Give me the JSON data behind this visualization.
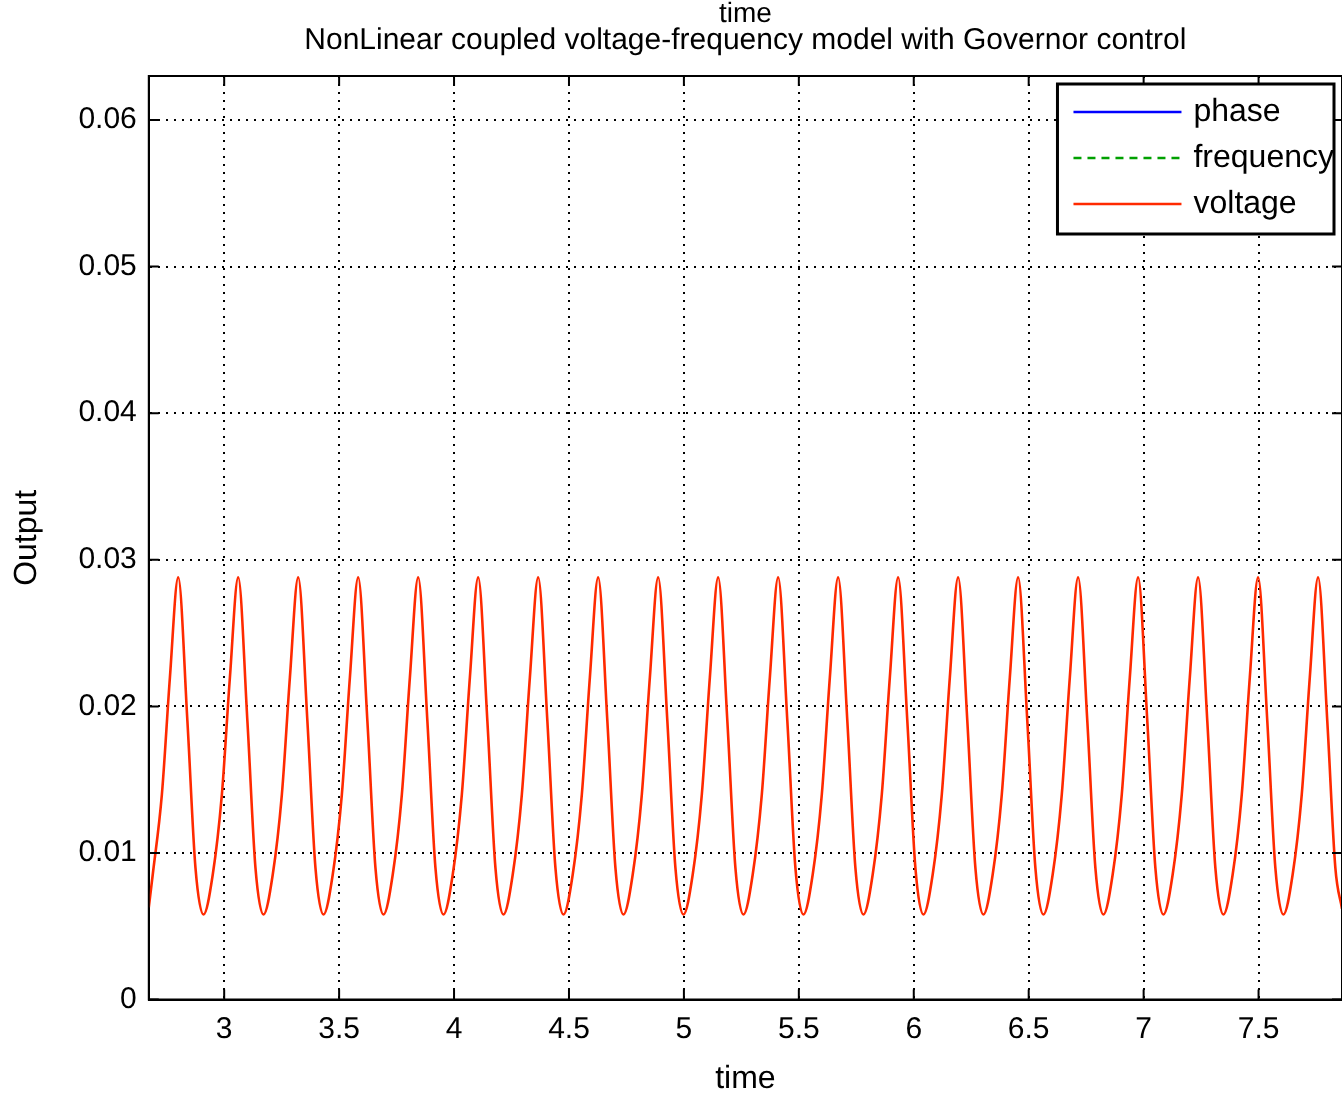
{
  "chart_data": {
    "type": "line",
    "title": "NonLinear coupled voltage-frequency model with Governor control",
    "xlabel": "time",
    "ylabel": "Output",
    "annotations": [
      "time"
    ],
    "x": [
      2.672,
      2.689,
      2.729,
      2.764,
      2.8,
      2.84,
      2.875,
      2.91,
      2.95,
      2.99,
      3.025,
      3.061,
      3.101,
      3.136,
      3.171,
      3.211,
      3.251,
      3.286,
      3.322,
      3.362,
      3.397,
      3.432,
      3.472,
      3.512,
      3.547,
      3.583,
      3.623,
      3.658,
      3.693,
      3.733,
      3.773,
      3.808,
      3.844,
      3.884,
      3.919,
      3.954,
      3.994,
      4.034,
      4.069,
      4.105,
      4.145,
      4.18,
      4.215,
      4.255,
      4.295,
      4.33,
      4.366,
      4.406,
      4.441,
      4.476,
      4.516,
      4.556,
      4.591,
      4.627,
      4.667,
      4.702,
      4.737,
      4.777,
      4.817,
      4.852,
      4.888,
      4.928,
      4.963,
      4.998,
      5.038,
      5.078,
      5.113,
      5.149,
      5.189,
      5.224,
      5.259,
      5.299,
      5.339,
      5.374,
      5.41,
      5.45,
      5.485,
      5.52,
      5.56,
      5.6,
      5.635,
      5.671,
      5.711,
      5.746,
      5.781,
      5.821,
      5.861,
      5.896,
      5.932,
      5.972,
      6.007,
      6.042,
      6.082,
      6.122,
      6.157,
      6.193,
      6.233,
      6.268,
      6.303,
      6.343,
      6.383,
      6.418,
      6.454,
      6.494,
      6.529,
      6.564,
      6.604,
      6.644,
      6.679,
      6.715,
      6.755,
      6.79,
      6.825,
      6.865,
      6.905,
      6.94,
      6.976,
      7.016,
      7.051,
      7.086,
      7.126,
      7.166,
      7.201,
      7.237,
      7.277,
      7.312,
      7.347,
      7.387,
      7.427,
      7.462,
      7.498,
      7.538,
      7.573,
      7.608,
      7.648,
      7.688,
      7.723,
      7.759,
      7.799,
      7.834,
      7.863
    ],
    "series": [
      {
        "name": "phase",
        "color": "#0000ff",
        "values": [
          null,
          null,
          null,
          null,
          null,
          null,
          null,
          null,
          null,
          null,
          null,
          null,
          null,
          null,
          null,
          null,
          null,
          null,
          null,
          null,
          null,
          null,
          null,
          null,
          null,
          null,
          null,
          null,
          null,
          null,
          null,
          null,
          null,
          null,
          null,
          null,
          null,
          null,
          null,
          null,
          null,
          null,
          null,
          null,
          null,
          null,
          null,
          null,
          null,
          null,
          null,
          null,
          null,
          null,
          null,
          null,
          null,
          null,
          null,
          null,
          null,
          null,
          null,
          null,
          null,
          null,
          null,
          null,
          null,
          null,
          null,
          null,
          null,
          null,
          null,
          null,
          null,
          null,
          null,
          null,
          null,
          null,
          null,
          null,
          null,
          null,
          null,
          null,
          null,
          null,
          null,
          null,
          null,
          null,
          null,
          null,
          null,
          null,
          null,
          null,
          null,
          null,
          null,
          null,
          null,
          null,
          null,
          null,
          null,
          null,
          null,
          null,
          null,
          null,
          null,
          null,
          null,
          null,
          null,
          null,
          null,
          null,
          null,
          null,
          null,
          null,
          null,
          null,
          null,
          null,
          null,
          null,
          null,
          null,
          null,
          null,
          null,
          null,
          null,
          null,
          null
        ]
      },
      {
        "name": "frequency",
        "color": "#00a000",
        "line_style": "dashed",
        "values": [
          null,
          null,
          null,
          null,
          null,
          null,
          null,
          null,
          null,
          null,
          null,
          null,
          null,
          null,
          null,
          null,
          null,
          null,
          null,
          null,
          null,
          null,
          null,
          null,
          null,
          null,
          null,
          null,
          null,
          null,
          null,
          null,
          null,
          null,
          null,
          null,
          null,
          null,
          null,
          null,
          null,
          null,
          null,
          null,
          null,
          null,
          null,
          null,
          null,
          null,
          null,
          null,
          null,
          null,
          null,
          null,
          null,
          null,
          null,
          null,
          null,
          null,
          null,
          null,
          null,
          null,
          null,
          null,
          null,
          null,
          null,
          null,
          null,
          null,
          null,
          null,
          null,
          null,
          null,
          null,
          null,
          null,
          null,
          null,
          null,
          null,
          null,
          null,
          null,
          null,
          null,
          null,
          null,
          null,
          null,
          null,
          null,
          null,
          null,
          null,
          null,
          null,
          null,
          null,
          null,
          null,
          null,
          null,
          null,
          null,
          null,
          null,
          null,
          null,
          null,
          null,
          null,
          null,
          null,
          null,
          null,
          null,
          null,
          null,
          null,
          null,
          null,
          null,
          null,
          null,
          null,
          null,
          null,
          null,
          null,
          null,
          null,
          null,
          null,
          null,
          null
        ]
      },
      {
        "name": "voltage",
        "color": "#ff2a00",
        "values": [
          0.0063,
          0.0085,
          0.014,
          0.022,
          0.0288,
          0.019,
          0.009,
          0.0058,
          0.0085,
          0.014,
          0.022,
          0.0288,
          0.019,
          0.009,
          0.0058,
          0.0085,
          0.014,
          0.022,
          0.0288,
          0.019,
          0.009,
          0.0058,
          0.0085,
          0.014,
          0.022,
          0.0288,
          0.019,
          0.009,
          0.0058,
          0.0085,
          0.014,
          0.022,
          0.0288,
          0.019,
          0.009,
          0.0058,
          0.0085,
          0.014,
          0.022,
          0.0288,
          0.019,
          0.009,
          0.0058,
          0.0085,
          0.014,
          0.022,
          0.0288,
          0.019,
          0.009,
          0.0058,
          0.0085,
          0.014,
          0.022,
          0.0288,
          0.019,
          0.009,
          0.0058,
          0.0085,
          0.014,
          0.022,
          0.0288,
          0.019,
          0.009,
          0.0058,
          0.0085,
          0.014,
          0.022,
          0.0288,
          0.019,
          0.009,
          0.0058,
          0.0085,
          0.014,
          0.022,
          0.0288,
          0.019,
          0.009,
          0.0058,
          0.0085,
          0.014,
          0.022,
          0.0288,
          0.019,
          0.009,
          0.0058,
          0.0085,
          0.014,
          0.022,
          0.0288,
          0.019,
          0.009,
          0.0058,
          0.0085,
          0.014,
          0.022,
          0.0288,
          0.019,
          0.009,
          0.0058,
          0.0085,
          0.014,
          0.022,
          0.0288,
          0.019,
          0.009,
          0.0058,
          0.0085,
          0.014,
          0.022,
          0.0288,
          0.019,
          0.009,
          0.0058,
          0.0085,
          0.014,
          0.022,
          0.0288,
          0.019,
          0.009,
          0.0058,
          0.0085,
          0.014,
          0.022,
          0.0288,
          0.019,
          0.009,
          0.0058,
          0.0085,
          0.014,
          0.022,
          0.0288,
          0.019,
          0.009,
          0.0058,
          0.0085,
          0.014,
          0.022,
          0.0288,
          0.019,
          0.009,
          0.0062
        ]
      }
    ],
    "xlim": [
      2.672,
      7.863
    ],
    "xticks": [
      3,
      3.5,
      4,
      4.5,
      5,
      5.5,
      6,
      6.5,
      7,
      7.5
    ],
    "ylim": [
      0,
      0.063
    ],
    "yticks": [
      0,
      0.01,
      0.02,
      0.03,
      0.04,
      0.05,
      0.06
    ],
    "grid": true,
    "legend": "top right",
    "marker": "none",
    "line_style": "solid"
  }
}
